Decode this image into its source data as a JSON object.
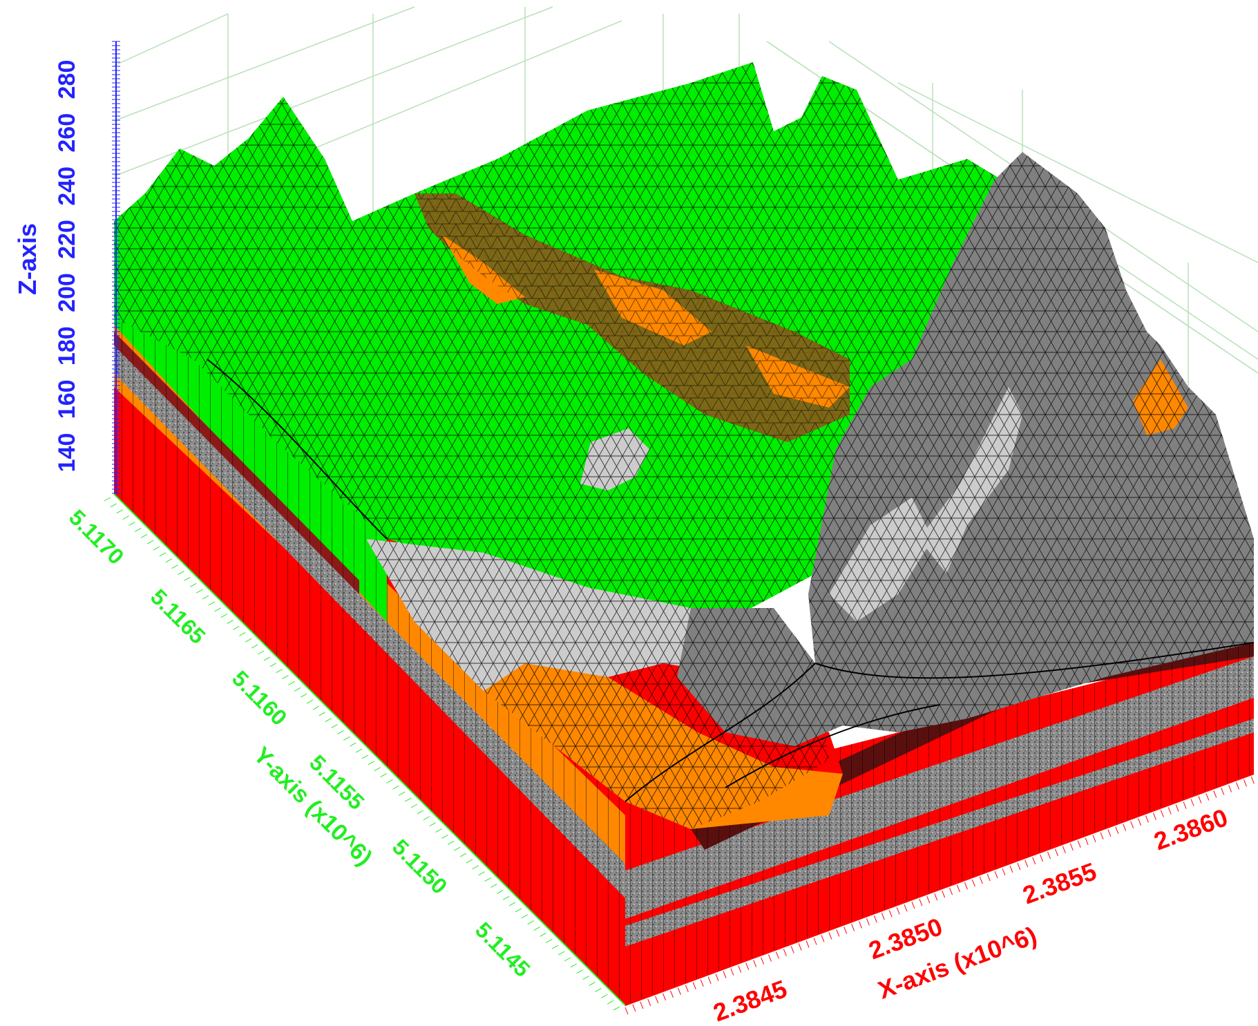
{
  "axes": {
    "z": {
      "title": "Z-axis",
      "ticks": [
        "140",
        "160",
        "180",
        "200",
        "220",
        "240",
        "260",
        "280"
      ],
      "color": "#2222ff"
    },
    "y": {
      "title": "Y-axis (x10^6)",
      "ticks": [
        "5.1170",
        "5.1165",
        "5.1160",
        "5.1155",
        "5.1150",
        "5.1145"
      ],
      "color": "#22ee22"
    },
    "x": {
      "title": "X-axis (x10^6)",
      "ticks": [
        "2.3845",
        "2.3850",
        "2.3855",
        "2.3860"
      ],
      "color": "#ff0000"
    }
  },
  "layers": [
    {
      "name": "surface-green",
      "color": "#00ee00"
    },
    {
      "name": "mountain-gray",
      "color": "#808080"
    },
    {
      "name": "light-gray",
      "color": "#cccccc"
    },
    {
      "name": "orange",
      "color": "#ff8800"
    },
    {
      "name": "brown",
      "color": "#8a5a1a"
    },
    {
      "name": "red-base",
      "color": "#ff0000"
    },
    {
      "name": "speckled-gray",
      "color": "#8c8c8c"
    }
  ],
  "grid_color": "#b8e0b8"
}
